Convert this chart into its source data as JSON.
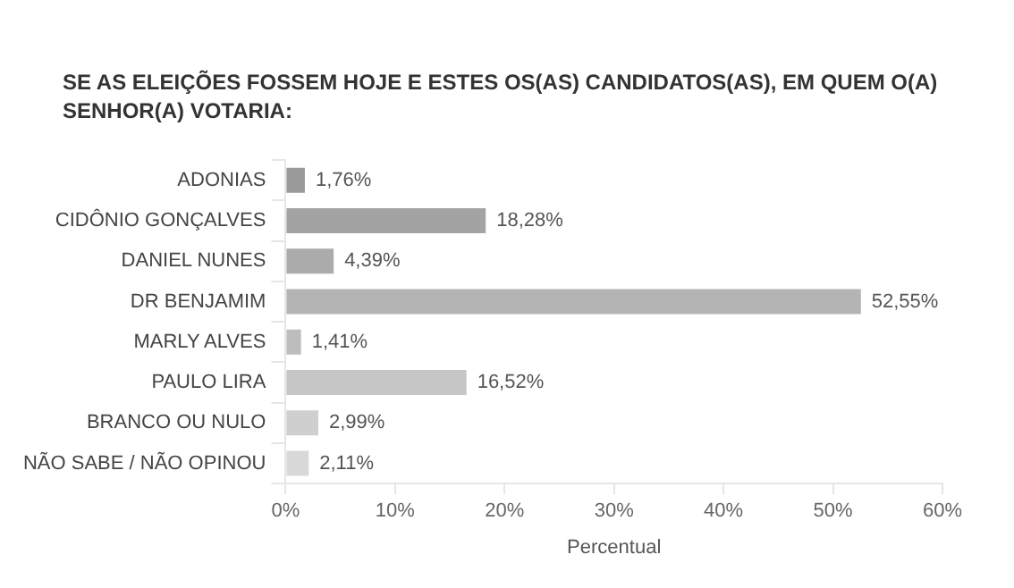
{
  "chart_data": {
    "type": "bar",
    "orientation": "horizontal",
    "title": "SE AS ELEIÇÕES FOSSEM HOJE E ESTES OS(AS) CANDIDATOS(AS), EM QUEM O(A) SENHOR(A) VOTARIA:",
    "xlabel": "Percentual",
    "categories": [
      "ADONIAS",
      "CIDÔNIO GONÇALVES",
      "DANIEL NUNES",
      "DR BENJAMIM",
      "MARLY ALVES",
      "PAULO LIRA",
      "BRANCO OU NULO",
      "NÃO SABE / NÃO OPINOU"
    ],
    "values": [
      1.76,
      18.28,
      4.39,
      52.55,
      1.41,
      16.52,
      2.99,
      2.11
    ],
    "value_labels": [
      "1,76%",
      "18,28%",
      "4,39%",
      "52,55%",
      "1,41%",
      "16,52%",
      "2,99%",
      "2,11%"
    ],
    "colors": [
      "#9a9a9a",
      "#a3a3a3",
      "#ababab",
      "#b4b4b4",
      "#bdbdbd",
      "#c6c6c6",
      "#cfcfcf",
      "#d8d8d8"
    ],
    "xlim": [
      0,
      60
    ],
    "xticks": [
      {
        "value": 0,
        "label": "0%"
      },
      {
        "value": 10,
        "label": "10%"
      },
      {
        "value": 20,
        "label": "20%"
      },
      {
        "value": 30,
        "label": "30%"
      },
      {
        "value": 40,
        "label": "40%"
      },
      {
        "value": 50,
        "label": "50%"
      },
      {
        "value": 60,
        "label": "60%"
      }
    ],
    "grid": false,
    "legend": false
  }
}
